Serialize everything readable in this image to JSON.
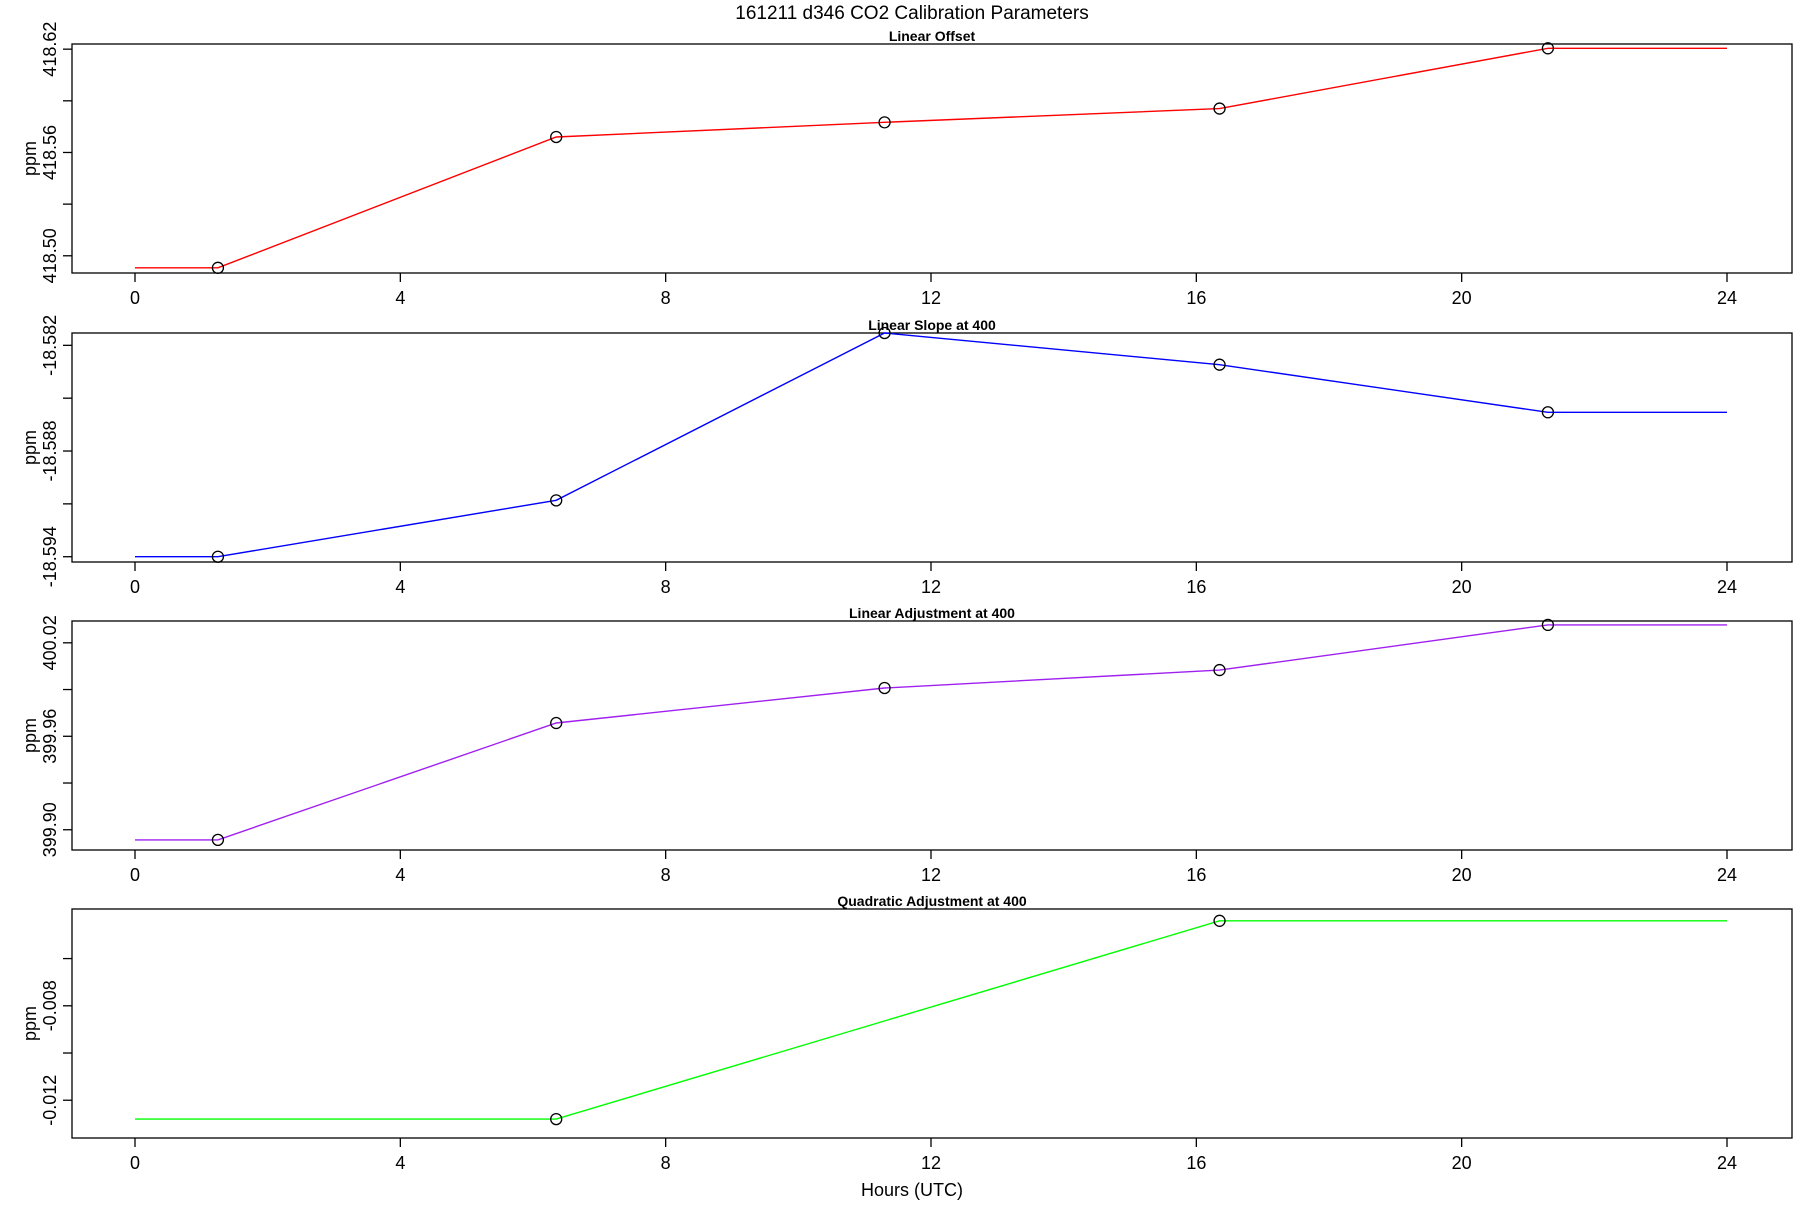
{
  "figure": {
    "title": "161211   d346   CO2 Calibration Parameters",
    "xlabel": "Hours (UTC)"
  },
  "chart_data": [
    {
      "type": "line",
      "title": "Linear Offset",
      "ylabel": "ppm",
      "xlim": [
        0,
        24
      ],
      "ylim": [
        418.49,
        418.623
      ],
      "xticks": [
        0,
        4,
        8,
        12,
        16,
        20,
        24
      ],
      "xtick_labels": [
        "0",
        "4",
        "8",
        "12",
        "16",
        "20",
        "24"
      ],
      "yticks": [
        418.5,
        418.53,
        418.56,
        418.59,
        418.62
      ],
      "ytick_labels": [
        "418.50",
        "",
        "418.56",
        "",
        "418.62"
      ],
      "color": "#ff0000",
      "line_x": [
        0,
        1.25,
        6.35,
        11.3,
        16.35,
        21.3,
        24
      ],
      "line_y": [
        418.493,
        418.493,
        418.569,
        418.5775,
        418.5855,
        418.6205,
        418.6205
      ],
      "points_x": [
        1.25,
        6.35,
        11.3,
        16.35,
        21.3
      ],
      "points_y": [
        418.493,
        418.569,
        418.5775,
        418.5855,
        418.6205
      ]
    },
    {
      "type": "line",
      "title": "Linear Slope at 400",
      "ylabel": "ppm",
      "xlim": [
        0,
        24
      ],
      "ylim": [
        -18.5943,
        -18.5813
      ],
      "xticks": [
        0,
        4,
        8,
        12,
        16,
        20,
        24
      ],
      "xtick_labels": [
        "0",
        "4",
        "8",
        "12",
        "16",
        "20",
        "24"
      ],
      "yticks": [
        -18.594,
        -18.591,
        -18.588,
        -18.585,
        -18.582
      ],
      "ytick_labels": [
        "-18.594",
        "",
        "-18.588",
        "",
        "-18.582"
      ],
      "color": "#0000ff",
      "line_x": [
        0,
        1.25,
        6.35,
        11.3,
        16.35,
        21.3,
        24
      ],
      "line_y": [
        -18.594,
        -18.594,
        -18.5908,
        -18.5813,
        -18.5831,
        -18.5858,
        -18.5858
      ],
      "points_x": [
        1.25,
        6.35,
        11.3,
        16.35,
        21.3
      ],
      "points_y": [
        -18.594,
        -18.5908,
        -18.5813,
        -18.5831,
        -18.5858
      ]
    },
    {
      "type": "line",
      "title": "Linear Adjustment at 400",
      "ylabel": "ppm",
      "xlim": [
        0,
        24
      ],
      "ylim": [
        399.887,
        400.034
      ],
      "xticks": [
        0,
        4,
        8,
        12,
        16,
        20,
        24
      ],
      "xtick_labels": [
        "0",
        "4",
        "8",
        "12",
        "16",
        "20",
        "24"
      ],
      "yticks": [
        399.9,
        399.93,
        399.96,
        399.99,
        400.02
      ],
      "ytick_labels": [
        "399.90",
        "",
        "399.96",
        "",
        "400.02"
      ],
      "color": "#a020f0",
      "line_x": [
        0,
        1.25,
        6.35,
        11.3,
        16.35,
        21.3,
        24
      ],
      "line_y": [
        399.8935,
        399.8935,
        399.9685,
        399.991,
        400.0025,
        400.0315,
        400.0315
      ],
      "points_x": [
        1.25,
        6.35,
        11.3,
        16.35,
        21.3
      ],
      "points_y": [
        399.8935,
        399.9685,
        399.991,
        400.0025,
        400.0315
      ]
    },
    {
      "type": "line",
      "title": "Quadratic Adjustment at 400",
      "ylabel": "ppm",
      "xlim": [
        0,
        24
      ],
      "ylim": [
        -0.0136,
        -0.0039
      ],
      "xticks": [
        0,
        4,
        8,
        12,
        16,
        20,
        24
      ],
      "xtick_labels": [
        "0",
        "4",
        "8",
        "12",
        "16",
        "20",
        "24"
      ],
      "yticks": [
        -0.012,
        -0.01,
        -0.008,
        -0.006
      ],
      "ytick_labels": [
        "-0.012",
        "",
        "-0.008",
        ""
      ],
      "color": "#00ff00",
      "line_x": [
        0,
        6.35,
        16.35,
        24
      ],
      "line_y": [
        -0.0128,
        -0.0128,
        -0.0044,
        -0.0044
      ],
      "points_x": [
        6.35,
        16.35
      ],
      "points_y": [
        -0.0128,
        -0.0044
      ]
    }
  ]
}
